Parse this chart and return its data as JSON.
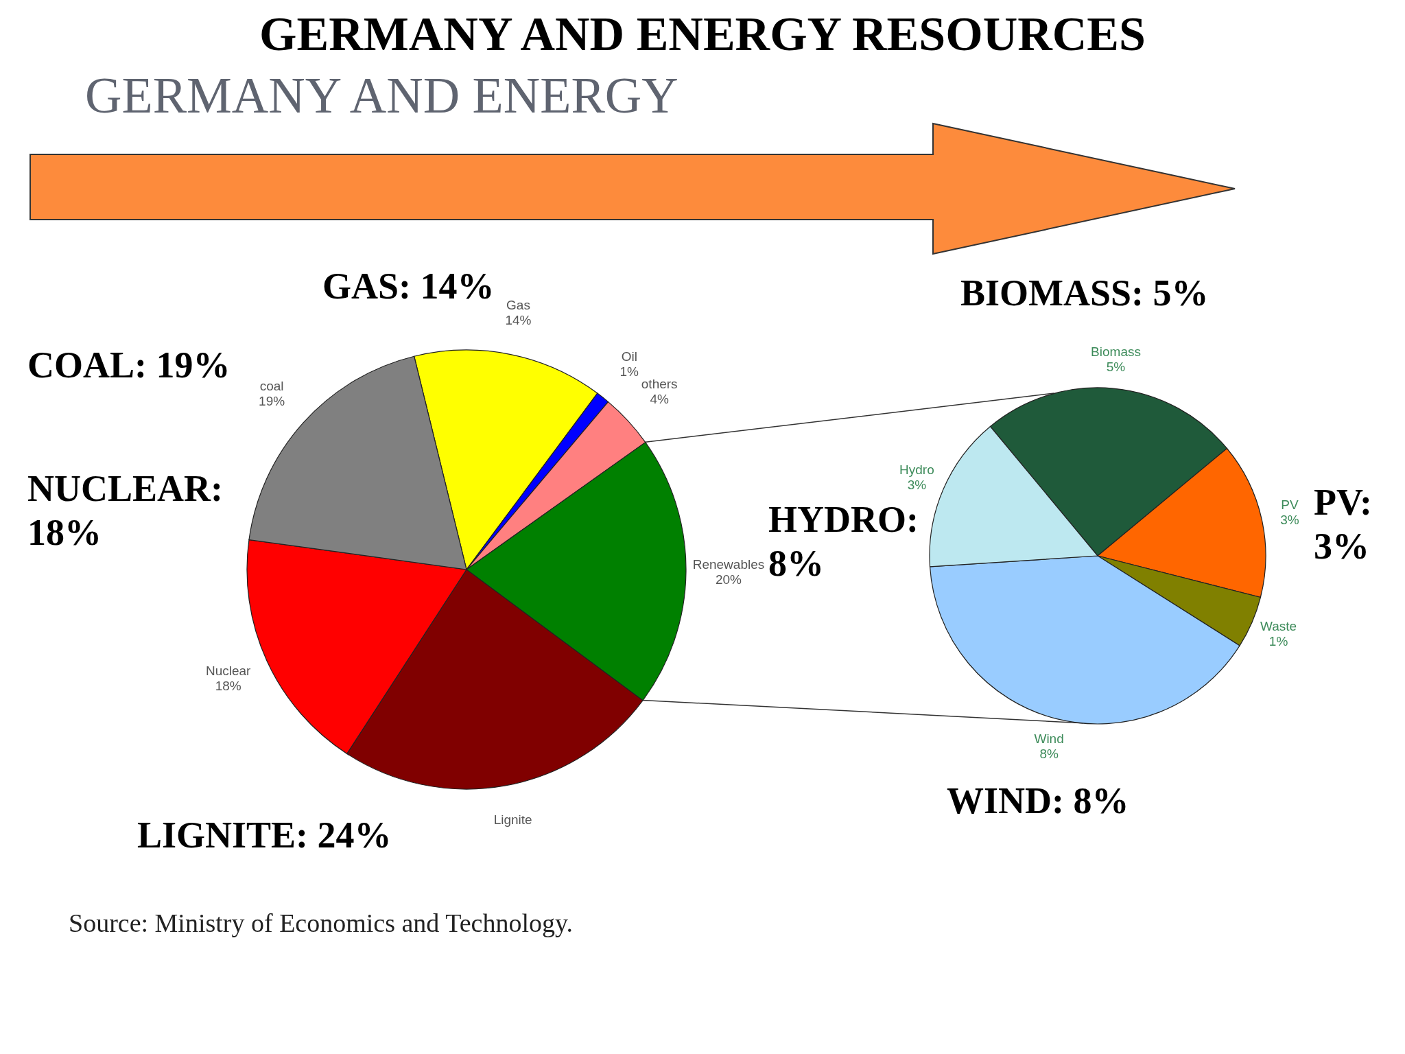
{
  "chart_data": [
    {
      "type": "pie",
      "title": "GERMANY AND ENERGY RESOURCES",
      "subtitle": "GERMANY AND ENERGY",
      "categories": [
        "Gas",
        "Oil",
        "others",
        "Renewables",
        "Lignite",
        "Nuclear",
        "coal"
      ],
      "values": [
        14,
        1,
        4,
        20,
        24,
        18,
        19
      ],
      "colors": [
        "#ffff00",
        "#0000ff",
        "#ff8080",
        "#008000",
        "#800000",
        "#ff0000",
        "#808080"
      ],
      "value_labels": [
        "14%",
        "1%",
        "4%",
        "20%",
        null,
        "18%",
        "19%"
      ],
      "annotations": [
        "GAS: 14%",
        "COAL: 19%",
        "NUCLEAR: 18%",
        "LIGNITE: 24%",
        "Source: Ministry of Economics and Technology."
      ]
    },
    {
      "type": "pie",
      "categories": [
        "Biomass",
        "PV",
        "Waste",
        "Wind",
        "Hydro"
      ],
      "values": [
        5,
        3,
        1,
        8,
        3
      ],
      "colors": [
        "#1f5a3a",
        "#ff6600",
        "#808000",
        "#99ccff",
        "#bde8f0"
      ],
      "value_labels": [
        "5%",
        "3%",
        "1%",
        "8%",
        "3%"
      ],
      "annotations": [
        "BIOMASS: 5%",
        "HYDRO: 8%",
        "PV: 3%",
        "WIND: 8%"
      ]
    }
  ]
}
